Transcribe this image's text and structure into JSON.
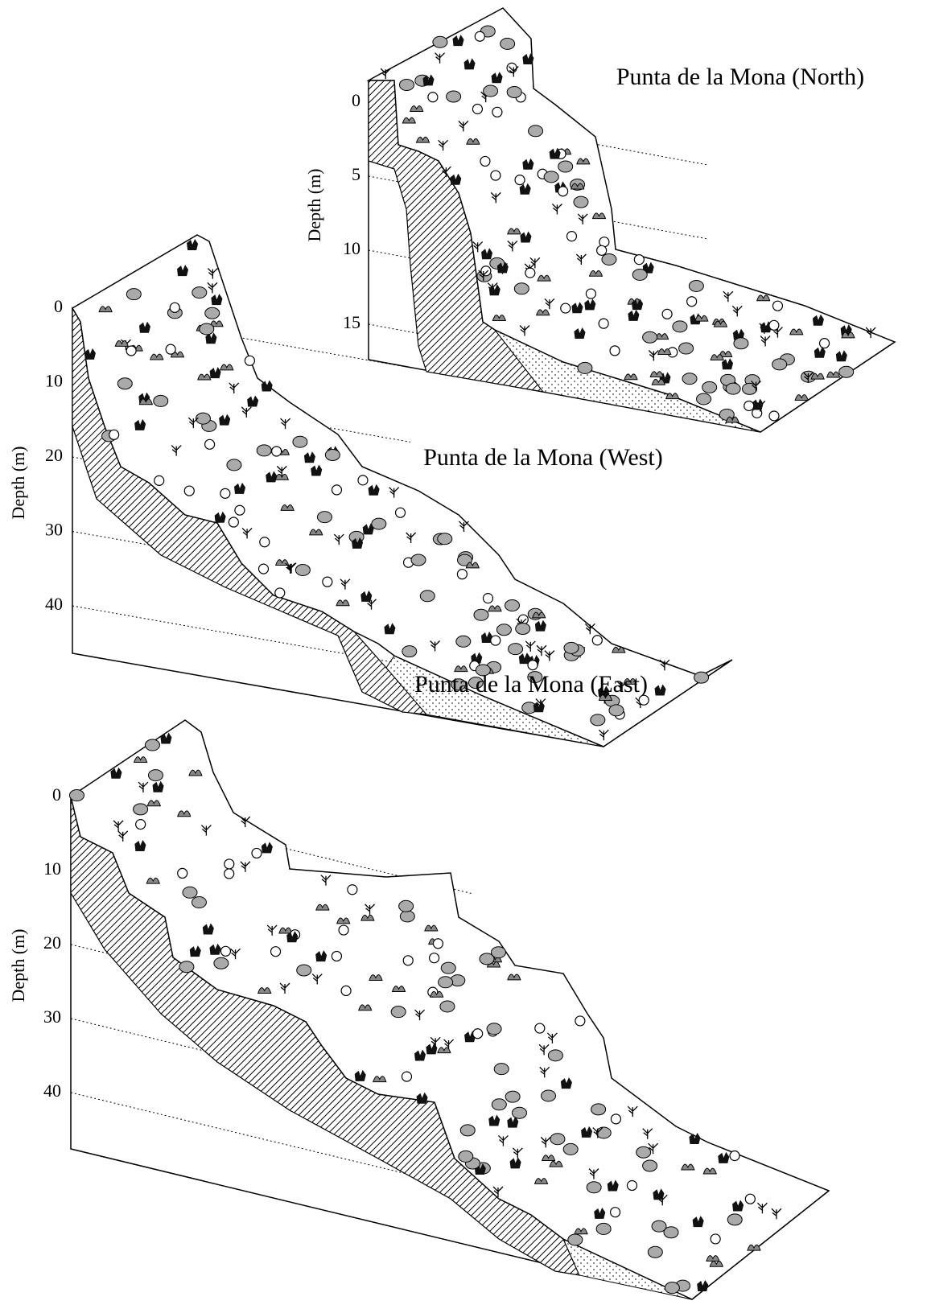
{
  "panels": [
    {
      "title": "Punta de la Mona (North)",
      "axis_label": "Depth (m)",
      "ticks": [
        0,
        5,
        10,
        15
      ]
    },
    {
      "title": "Punta de la Mona (West)",
      "axis_label": "Depth (m)",
      "ticks": [
        0,
        10,
        20,
        30,
        40
      ]
    },
    {
      "title": "Punta de la Mona (East)",
      "axis_label": "Depth (m)",
      "ticks": [
        0,
        10,
        20,
        30,
        40
      ]
    }
  ]
}
